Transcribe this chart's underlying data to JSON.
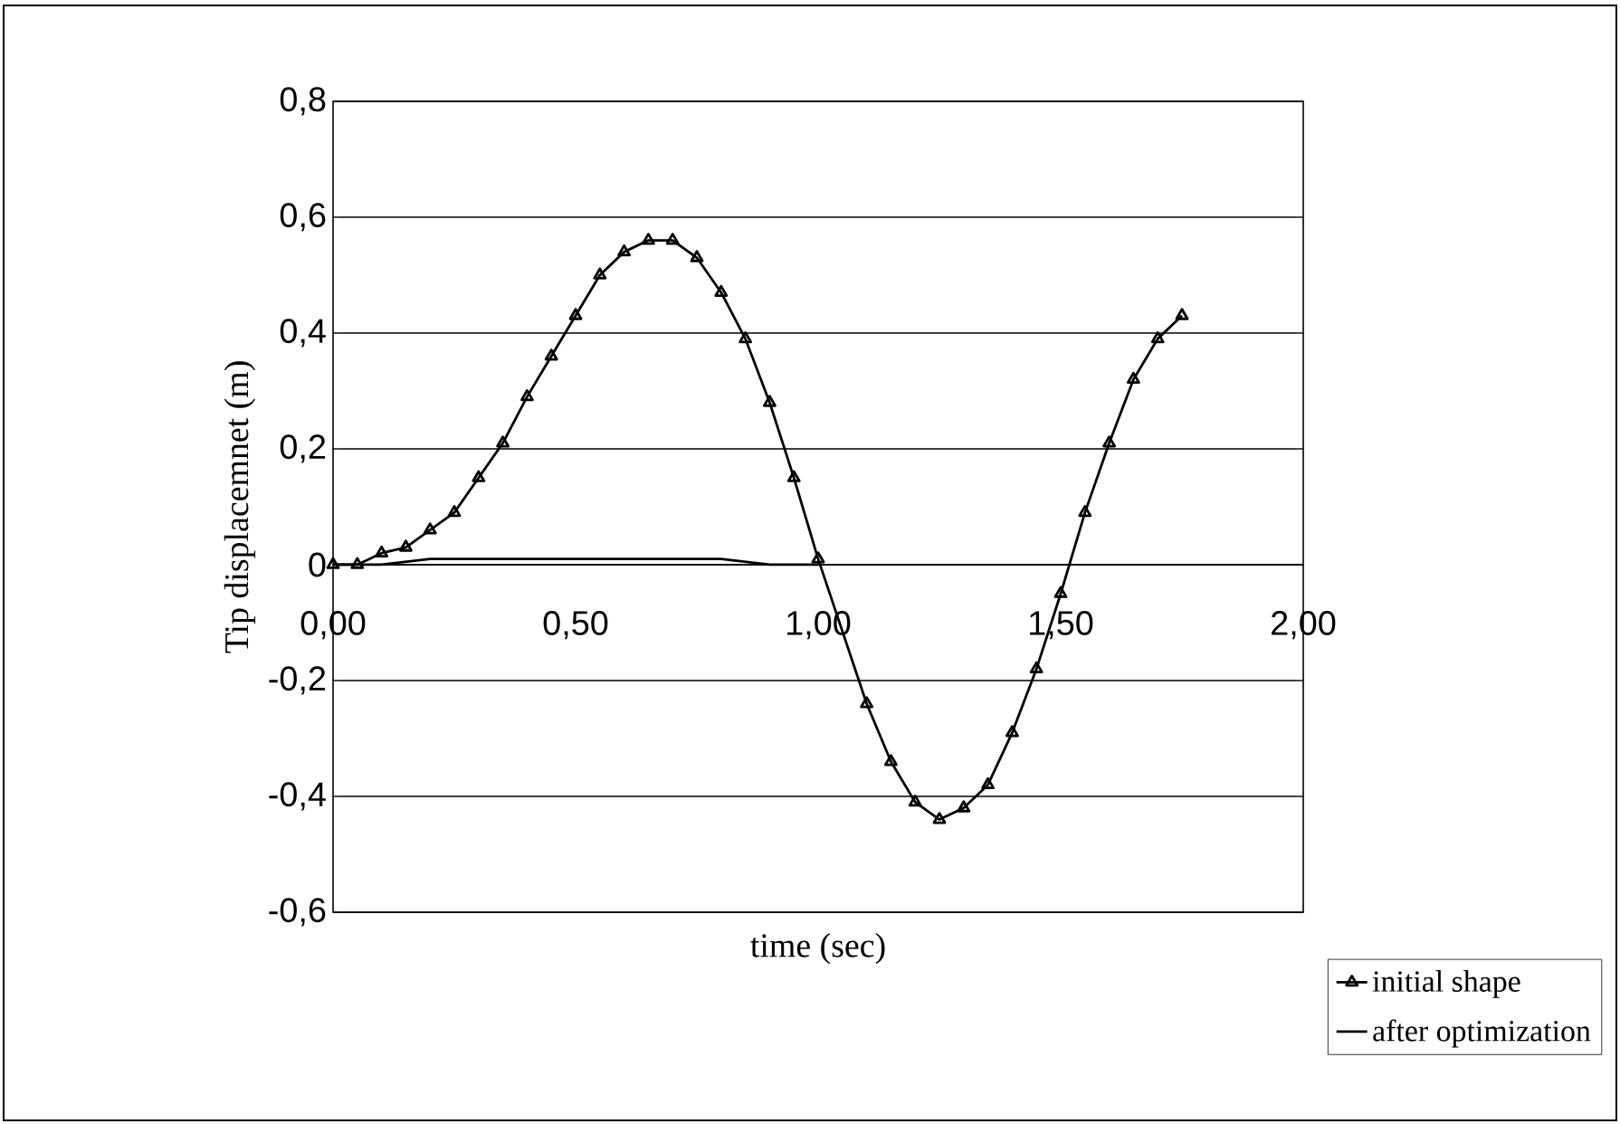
{
  "chart_data": {
    "type": "line",
    "xlabel": "time (sec)",
    "ylabel": "Tip displacemnet (m)",
    "xlim": [
      0,
      2
    ],
    "ylim": [
      -0.6,
      0.8
    ],
    "xticks": [
      {
        "value": 0,
        "label": "0,00"
      },
      {
        "value": 0.5,
        "label": "0,50"
      },
      {
        "value": 1,
        "label": "1,00"
      },
      {
        "value": 1.5,
        "label": "1,50"
      },
      {
        "value": 2,
        "label": "2,00"
      }
    ],
    "yticks": [
      {
        "value": -0.6,
        "label": "-0,6"
      },
      {
        "value": -0.4,
        "label": "-0,4"
      },
      {
        "value": -0.2,
        "label": "-0,2"
      },
      0,
      {
        "value": 0.2,
        "label": "0,2"
      },
      {
        "value": 0.4,
        "label": "0,4"
      },
      {
        "value": 0.6,
        "label": "0,6"
      },
      {
        "value": 0.8,
        "label": "0,8"
      }
    ],
    "grid": "y",
    "legend": "bottom right",
    "line_style": "solid",
    "series": [
      {
        "name": "initial shape",
        "color": "#000000",
        "marker": "triangle",
        "x": [
          0,
          0.05,
          0.1,
          0.15,
          0.2,
          0.25,
          0.3,
          0.35,
          0.4,
          0.45,
          0.5,
          0.55,
          0.6,
          0.65,
          0.7,
          0.75,
          0.8,
          0.85,
          0.9,
          0.95,
          1.0,
          1.1,
          1.15,
          1.2,
          1.25,
          1.3,
          1.35,
          1.4,
          1.45,
          1.5,
          1.55,
          1.6,
          1.65,
          1.7,
          1.75
        ],
        "values": [
          0,
          0,
          0.02,
          0.03,
          0.06,
          0.09,
          0.15,
          0.21,
          0.29,
          0.36,
          0.43,
          0.5,
          0.54,
          0.56,
          0.56,
          0.53,
          0.47,
          0.39,
          0.28,
          0.15,
          0.01,
          -0.24,
          -0.34,
          -0.41,
          -0.44,
          -0.42,
          -0.38,
          -0.29,
          -0.18,
          -0.05,
          0.09,
          0.21,
          0.32,
          0.39,
          0.43
        ]
      },
      {
        "name": "after optimization",
        "color": "#000000",
        "marker": "none",
        "x": [
          0,
          0.1,
          0.2,
          0.35,
          0.5,
          0.6,
          0.8,
          0.9,
          1.0
        ],
        "values": [
          0,
          0,
          0.01,
          0.01,
          0.01,
          0.01,
          0.01,
          0,
          0
        ]
      }
    ]
  }
}
